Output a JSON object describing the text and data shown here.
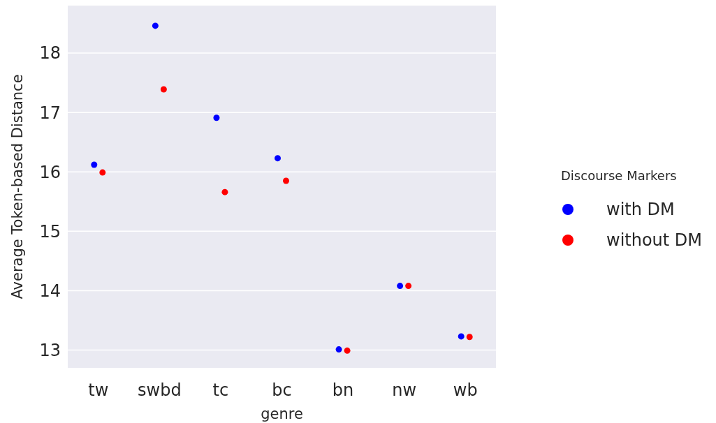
{
  "chart_data": {
    "type": "scatter",
    "xlabel": "genre",
    "ylabel": "Average Token-based Distance",
    "legend_title": "Discourse Markers",
    "legend": "right",
    "grid": "y",
    "marker": "circle",
    "categories": [
      "tw",
      "swbd",
      "tc",
      "bc",
      "bn",
      "nw",
      "wb"
    ],
    "ylim": [
      12.7,
      18.8
    ],
    "yticks": [
      13,
      14,
      15,
      16,
      17,
      18
    ],
    "series": [
      {
        "name": "with DM",
        "color": "#0000ff",
        "values": [
          16.12,
          18.46,
          16.91,
          16.23,
          13.01,
          14.08,
          13.23
        ]
      },
      {
        "name": "without DM",
        "color": "#ff0000",
        "values": [
          15.99,
          17.39,
          15.66,
          15.85,
          12.99,
          14.08,
          13.22
        ]
      }
    ]
  }
}
